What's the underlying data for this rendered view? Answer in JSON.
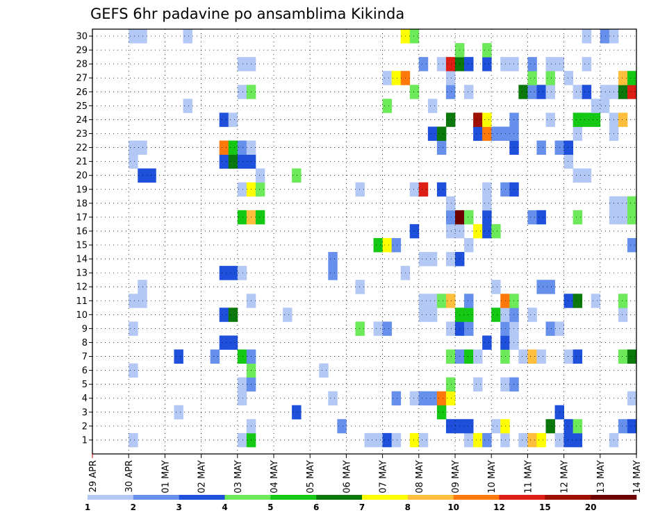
{
  "chart_data": {
    "type": "heatmap",
    "title": "GEFS 6hr padavine po ansamblima Kikinda",
    "members": [
      1,
      2,
      3,
      4,
      5,
      6,
      7,
      8,
      9,
      10,
      11,
      12,
      13,
      14,
      15,
      16,
      17,
      18,
      19,
      20,
      21,
      22,
      23,
      24,
      25,
      26,
      27,
      28,
      29,
      30
    ],
    "x_tick_labels": [
      "29 APR",
      "30 APR",
      "01 MAY",
      "02 MAY",
      "03 MAY",
      "04 MAY",
      "05 MAY",
      "06 MAY",
      "07 MAY",
      "08 MAY",
      "09 MAY",
      "10 MAY",
      "11 MAY",
      "12 MAY",
      "13 MAY",
      "14 MAY"
    ],
    "steps_per_day": 4,
    "time_steps": 60,
    "legend_levels": [
      "1",
      "2",
      "3",
      "4",
      "5",
      "6",
      "7",
      "8",
      "10",
      "12",
      "15",
      "20"
    ],
    "legend_colors": [
      "#b4c8f5",
      "#6690ec",
      "#1e50dc",
      "#6cea5a",
      "#14c814",
      "#0a780a",
      "#ffff00",
      "#ffbe3c",
      "#ff780a",
      "#dc1e14",
      "#a01000",
      "#6e0000"
    ],
    "grid": "dotted",
    "cells": [
      [
        1,
        5,
        1
      ],
      [
        1,
        17,
        1
      ],
      [
        1,
        18,
        5
      ],
      [
        1,
        31,
        1
      ],
      [
        1,
        32,
        1
      ],
      [
        1,
        33,
        3
      ],
      [
        1,
        34,
        1
      ],
      [
        1,
        36,
        7
      ],
      [
        1,
        37,
        1
      ],
      [
        1,
        42,
        1
      ],
      [
        1,
        43,
        7
      ],
      [
        1,
        44,
        2
      ],
      [
        1,
        46,
        1
      ],
      [
        1,
        48,
        1
      ],
      [
        1,
        49,
        8
      ],
      [
        1,
        50,
        7
      ],
      [
        1,
        52,
        1
      ],
      [
        1,
        53,
        3
      ],
      [
        1,
        54,
        3
      ],
      [
        1,
        58,
        1
      ],
      [
        2,
        18,
        1
      ],
      [
        2,
        28,
        2
      ],
      [
        2,
        40,
        3
      ],
      [
        2,
        41,
        3
      ],
      [
        2,
        42,
        3
      ],
      [
        2,
        45,
        1
      ],
      [
        2,
        46,
        7
      ],
      [
        2,
        51,
        6
      ],
      [
        2,
        53,
        3
      ],
      [
        2,
        54,
        4
      ],
      [
        2,
        59,
        2
      ],
      [
        2,
        60,
        3
      ],
      [
        3,
        10,
        1
      ],
      [
        3,
        23,
        3
      ],
      [
        3,
        39,
        5
      ],
      [
        3,
        52,
        3
      ],
      [
        4,
        17,
        1
      ],
      [
        4,
        27,
        1
      ],
      [
        4,
        34,
        2
      ],
      [
        4,
        36,
        1
      ],
      [
        4,
        37,
        2
      ],
      [
        4,
        38,
        2
      ],
      [
        4,
        39,
        9
      ],
      [
        4,
        40,
        7
      ],
      [
        4,
        60,
        1
      ],
      [
        5,
        17,
        1
      ],
      [
        5,
        18,
        2
      ],
      [
        5,
        40,
        4
      ],
      [
        5,
        43,
        1
      ],
      [
        5,
        46,
        1
      ],
      [
        5,
        47,
        2
      ],
      [
        6,
        5,
        1
      ],
      [
        6,
        18,
        4
      ],
      [
        6,
        26,
        1
      ],
      [
        7,
        10,
        3
      ],
      [
        7,
        14,
        2
      ],
      [
        7,
        17,
        5
      ],
      [
        7,
        18,
        2
      ],
      [
        7,
        40,
        4
      ],
      [
        7,
        41,
        2
      ],
      [
        7,
        42,
        5
      ],
      [
        7,
        43,
        1
      ],
      [
        7,
        46,
        4
      ],
      [
        7,
        48,
        1
      ],
      [
        7,
        49,
        8
      ],
      [
        7,
        50,
        1
      ],
      [
        7,
        53,
        1
      ],
      [
        7,
        54,
        3
      ],
      [
        7,
        59,
        4
      ],
      [
        7,
        60,
        6
      ],
      [
        8,
        15,
        3
      ],
      [
        8,
        16,
        3
      ],
      [
        8,
        44,
        3
      ],
      [
        8,
        46,
        3
      ],
      [
        8,
        47,
        1
      ],
      [
        9,
        5,
        1
      ],
      [
        9,
        30,
        4
      ],
      [
        9,
        32,
        1
      ],
      [
        9,
        33,
        2
      ],
      [
        9,
        40,
        1
      ],
      [
        9,
        41,
        3
      ],
      [
        9,
        42,
        2
      ],
      [
        9,
        46,
        2
      ],
      [
        9,
        47,
        1
      ],
      [
        9,
        51,
        2
      ],
      [
        9,
        52,
        1
      ],
      [
        10,
        15,
        3
      ],
      [
        10,
        16,
        6
      ],
      [
        10,
        22,
        1
      ],
      [
        10,
        37,
        1
      ],
      [
        10,
        38,
        1
      ],
      [
        10,
        41,
        5
      ],
      [
        10,
        42,
        5
      ],
      [
        10,
        45,
        5
      ],
      [
        10,
        46,
        1
      ],
      [
        10,
        47,
        2
      ],
      [
        10,
        49,
        1
      ],
      [
        10,
        59,
        1
      ],
      [
        11,
        5,
        1
      ],
      [
        11,
        6,
        1
      ],
      [
        11,
        18,
        1
      ],
      [
        11,
        37,
        1
      ],
      [
        11,
        38,
        1
      ],
      [
        11,
        39,
        4
      ],
      [
        11,
        40,
        8
      ],
      [
        11,
        42,
        2
      ],
      [
        11,
        46,
        9
      ],
      [
        11,
        47,
        4
      ],
      [
        11,
        53,
        3
      ],
      [
        11,
        54,
        6
      ],
      [
        11,
        56,
        1
      ],
      [
        11,
        59,
        4
      ],
      [
        12,
        6,
        1
      ],
      [
        12,
        30,
        1
      ],
      [
        12,
        45,
        1
      ],
      [
        12,
        50,
        2
      ],
      [
        12,
        51,
        2
      ],
      [
        13,
        15,
        3
      ],
      [
        13,
        16,
        3
      ],
      [
        13,
        17,
        1
      ],
      [
        13,
        27,
        2
      ],
      [
        13,
        35,
        1
      ],
      [
        14,
        27,
        2
      ],
      [
        14,
        37,
        1
      ],
      [
        14,
        38,
        1
      ],
      [
        14,
        40,
        1
      ],
      [
        14,
        41,
        3
      ],
      [
        15,
        32,
        5
      ],
      [
        15,
        33,
        7
      ],
      [
        15,
        34,
        2
      ],
      [
        15,
        42,
        1
      ],
      [
        15,
        60,
        2
      ],
      [
        16,
        43,
        7
      ],
      [
        16,
        44,
        3
      ],
      [
        16,
        45,
        4
      ],
      [
        16,
        36,
        3
      ],
      [
        16,
        40,
        1
      ],
      [
        16,
        41,
        1
      ],
      [
        17,
        17,
        5
      ],
      [
        17,
        18,
        8
      ],
      [
        17,
        19,
        5
      ],
      [
        17,
        40,
        2
      ],
      [
        17,
        41,
        12
      ],
      [
        17,
        42,
        4
      ],
      [
        17,
        44,
        3
      ],
      [
        17,
        49,
        2
      ],
      [
        17,
        50,
        3
      ],
      [
        17,
        54,
        4
      ],
      [
        17,
        58,
        1
      ],
      [
        17,
        59,
        1
      ],
      [
        17,
        60,
        4
      ],
      [
        18,
        40,
        1
      ],
      [
        18,
        44,
        1
      ],
      [
        18,
        58,
        1
      ],
      [
        18,
        59,
        1
      ],
      [
        18,
        60,
        4
      ],
      [
        19,
        17,
        1
      ],
      [
        19,
        18,
        7
      ],
      [
        19,
        19,
        4
      ],
      [
        19,
        30,
        1
      ],
      [
        19,
        36,
        1
      ],
      [
        19,
        37,
        10
      ],
      [
        19,
        39,
        3
      ],
      [
        19,
        44,
        1
      ],
      [
        19,
        46,
        2
      ],
      [
        19,
        47,
        3
      ],
      [
        20,
        6,
        3
      ],
      [
        20,
        7,
        3
      ],
      [
        20,
        19,
        1
      ],
      [
        20,
        23,
        4
      ],
      [
        20,
        54,
        1
      ],
      [
        20,
        55,
        1
      ],
      [
        21,
        5,
        1
      ],
      [
        21,
        15,
        3
      ],
      [
        21,
        16,
        6
      ],
      [
        21,
        17,
        3
      ],
      [
        21,
        18,
        3
      ],
      [
        21,
        53,
        1
      ],
      [
        22,
        5,
        1
      ],
      [
        22,
        6,
        1
      ],
      [
        22,
        15,
        9
      ],
      [
        22,
        16,
        5
      ],
      [
        22,
        17,
        2
      ],
      [
        22,
        18,
        1
      ],
      [
        22,
        39,
        2
      ],
      [
        22,
        47,
        3
      ],
      [
        22,
        50,
        2
      ],
      [
        22,
        52,
        2
      ],
      [
        22,
        53,
        3
      ],
      [
        23,
        38,
        3
      ],
      [
        23,
        39,
        6
      ],
      [
        23,
        43,
        3
      ],
      [
        23,
        44,
        9
      ],
      [
        23,
        45,
        2
      ],
      [
        23,
        46,
        2
      ],
      [
        23,
        47,
        2
      ],
      [
        23,
        54,
        1
      ],
      [
        23,
        58,
        1
      ],
      [
        24,
        15,
        3
      ],
      [
        24,
        16,
        1
      ],
      [
        24,
        40,
        6
      ],
      [
        24,
        43,
        11
      ],
      [
        24,
        44,
        7
      ],
      [
        24,
        47,
        2
      ],
      [
        24,
        51,
        1
      ],
      [
        24,
        54,
        5
      ],
      [
        24,
        55,
        5
      ],
      [
        24,
        56,
        5
      ],
      [
        24,
        58,
        1
      ],
      [
        24,
        59,
        8
      ],
      [
        25,
        11,
        1
      ],
      [
        25,
        33,
        4
      ],
      [
        25,
        38,
        1
      ],
      [
        25,
        56,
        1
      ],
      [
        25,
        57,
        1
      ],
      [
        26,
        17,
        1
      ],
      [
        26,
        18,
        4
      ],
      [
        26,
        36,
        4
      ],
      [
        26,
        40,
        2
      ],
      [
        26,
        42,
        1
      ],
      [
        26,
        48,
        6
      ],
      [
        26,
        49,
        2
      ],
      [
        26,
        50,
        3
      ],
      [
        26,
        51,
        1
      ],
      [
        26,
        54,
        1
      ],
      [
        26,
        55,
        3
      ],
      [
        26,
        57,
        1
      ],
      [
        26,
        58,
        1
      ],
      [
        26,
        59,
        6
      ],
      [
        26,
        60,
        10
      ],
      [
        27,
        33,
        1
      ],
      [
        27,
        34,
        7
      ],
      [
        27,
        35,
        9
      ],
      [
        27,
        40,
        1
      ],
      [
        27,
        49,
        4
      ],
      [
        27,
        51,
        4
      ],
      [
        27,
        53,
        1
      ],
      [
        27,
        59,
        8
      ],
      [
        27,
        60,
        5
      ],
      [
        28,
        17,
        1
      ],
      [
        28,
        18,
        1
      ],
      [
        28,
        37,
        2
      ],
      [
        28,
        39,
        1
      ],
      [
        28,
        40,
        10
      ],
      [
        28,
        41,
        6
      ],
      [
        28,
        42,
        3
      ],
      [
        28,
        44,
        3
      ],
      [
        28,
        46,
        1
      ],
      [
        28,
        47,
        1
      ],
      [
        28,
        49,
        2
      ],
      [
        28,
        51,
        1
      ],
      [
        28,
        52,
        1
      ],
      [
        28,
        55,
        1
      ],
      [
        29,
        41,
        4
      ],
      [
        29,
        44,
        4
      ],
      [
        30,
        5,
        1
      ],
      [
        30,
        6,
        1
      ],
      [
        30,
        11,
        1
      ],
      [
        30,
        35,
        7
      ],
      [
        30,
        36,
        4
      ],
      [
        30,
        55,
        1
      ],
      [
        30,
        57,
        2
      ],
      [
        30,
        58,
        1
      ]
    ]
  }
}
